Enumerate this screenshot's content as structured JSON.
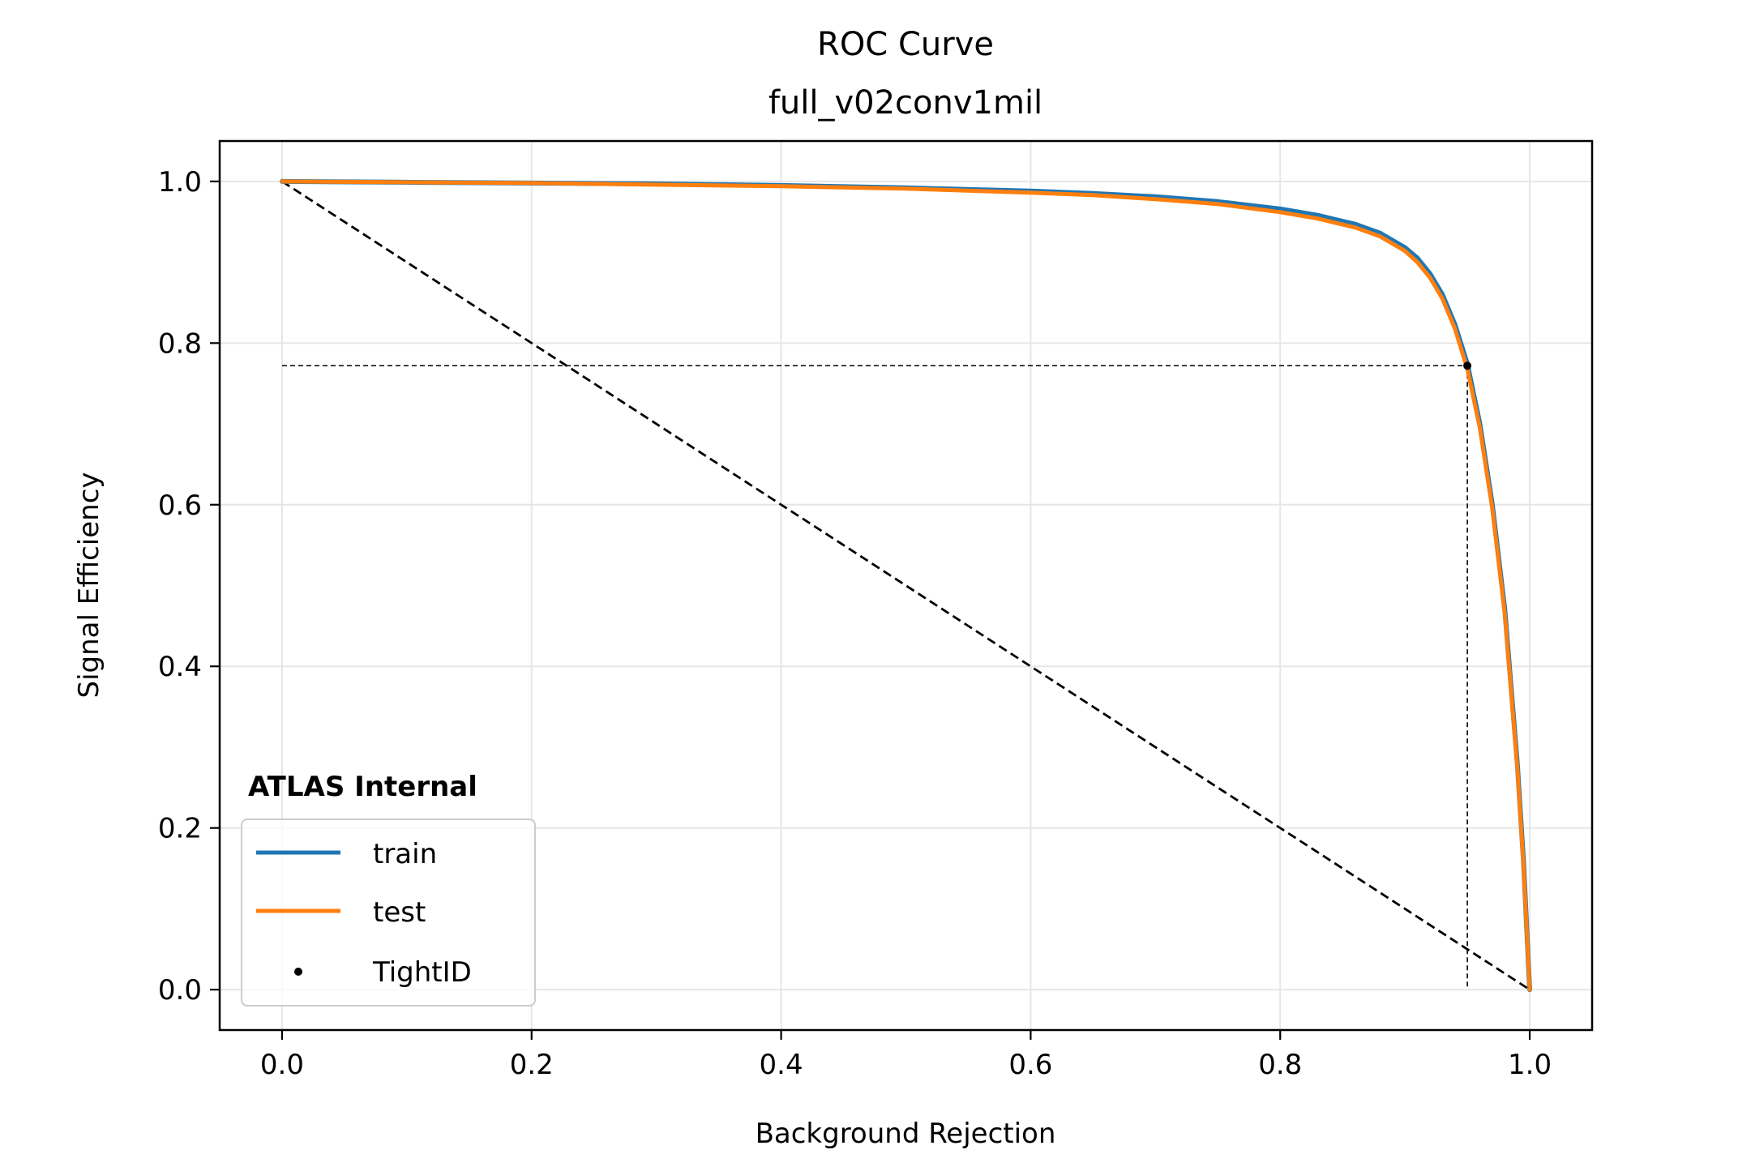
{
  "chart_data": {
    "type": "line",
    "title": "ROC Curve",
    "subtitle": "full_v02conv1mil",
    "xlabel": "Background Rejection",
    "ylabel": "Signal Efficiency",
    "xlim": [
      -0.05,
      1.05
    ],
    "ylim": [
      -0.05,
      1.05
    ],
    "xticks": [
      0.0,
      0.2,
      0.4,
      0.6,
      0.8,
      1.0
    ],
    "yticks": [
      0.0,
      0.2,
      0.4,
      0.6,
      0.8,
      1.0
    ],
    "xtick_labels": [
      "0.0",
      "0.2",
      "0.4",
      "0.6",
      "0.8",
      "1.0"
    ],
    "ytick_labels": [
      "0.0",
      "0.2",
      "0.4",
      "0.6",
      "0.8",
      "1.0"
    ],
    "grid": true,
    "annotation": "ATLAS Internal",
    "legend_position": "lower-left",
    "colors": {
      "train": "#1f77b4",
      "test": "#ff7f0e",
      "point": "#000000",
      "reference": "#000000",
      "grid": "#e6e6e6"
    },
    "series": [
      {
        "name": "train",
        "x": [
          0.0,
          0.1,
          0.2,
          0.3,
          0.4,
          0.5,
          0.6,
          0.65,
          0.7,
          0.75,
          0.8,
          0.83,
          0.86,
          0.88,
          0.9,
          0.91,
          0.92,
          0.93,
          0.94,
          0.95,
          0.96,
          0.97,
          0.98,
          0.99,
          0.995,
          1.0
        ],
        "y": [
          1.0,
          0.999,
          0.998,
          0.997,
          0.995,
          0.992,
          0.988,
          0.985,
          0.981,
          0.975,
          0.966,
          0.958,
          0.947,
          0.936,
          0.918,
          0.905,
          0.886,
          0.86,
          0.823,
          0.774,
          0.7,
          0.6,
          0.47,
          0.28,
          0.16,
          0.0
        ]
      },
      {
        "name": "test",
        "x": [
          0.0,
          0.1,
          0.2,
          0.3,
          0.4,
          0.5,
          0.6,
          0.65,
          0.7,
          0.75,
          0.8,
          0.83,
          0.86,
          0.88,
          0.9,
          0.91,
          0.92,
          0.93,
          0.94,
          0.95,
          0.96,
          0.97,
          0.98,
          0.99,
          0.995,
          1.0
        ],
        "y": [
          1.0,
          0.999,
          0.998,
          0.996,
          0.994,
          0.991,
          0.986,
          0.983,
          0.978,
          0.972,
          0.962,
          0.954,
          0.943,
          0.932,
          0.914,
          0.9,
          0.881,
          0.855,
          0.818,
          0.768,
          0.695,
          0.595,
          0.465,
          0.275,
          0.155,
          0.0
        ]
      },
      {
        "name": "TightID",
        "type": "scatter",
        "x": [
          0.95
        ],
        "y": [
          0.772
        ]
      }
    ],
    "reference_lines": [
      {
        "style": "dashed",
        "x": [
          0.0,
          1.0
        ],
        "y": [
          1.0,
          0.0
        ]
      },
      {
        "style": "dashed-thin",
        "x": [
          0.0,
          0.95
        ],
        "y": [
          0.772,
          0.772
        ]
      },
      {
        "style": "dashed-thin",
        "x": [
          0.95,
          0.95
        ],
        "y": [
          0.772,
          0.0
        ]
      }
    ]
  }
}
